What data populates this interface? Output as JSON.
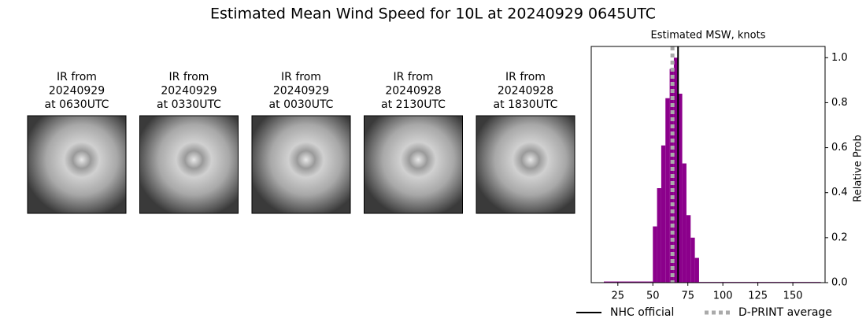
{
  "title": "Estimated Mean Wind Speed for 10L at 20240929 0645UTC",
  "panels": [
    {
      "lines": [
        "IR from",
        "20240929",
        "at 0630UTC"
      ]
    },
    {
      "lines": [
        "IR from",
        "20240929",
        "at 0330UTC"
      ]
    },
    {
      "lines": [
        "IR from",
        "20240929",
        "at 0030UTC"
      ]
    },
    {
      "lines": [
        "IR from",
        "20240928",
        "at 2130UTC"
      ]
    },
    {
      "lines": [
        "IR from",
        "20240928",
        "at 1830UTC"
      ]
    }
  ],
  "chart_data": {
    "type": "histogram",
    "title": "Estimated MSW, knots",
    "y_label": "Relative Prob",
    "bins": [
      15,
      50,
      53,
      56,
      59,
      62,
      65,
      68,
      71,
      74,
      77,
      80,
      83,
      170
    ],
    "values": [
      0.005,
      0.25,
      0.42,
      0.61,
      0.82,
      0.95,
      1.0,
      0.84,
      0.53,
      0.3,
      0.2,
      0.11,
      0.003
    ],
    "color": "#8b008b",
    "xlim": [
      6,
      173
    ],
    "xticks": [
      25,
      50,
      75,
      100,
      125,
      150
    ],
    "ylim": [
      0,
      1.05
    ],
    "yticks": [
      {
        "value": 0,
        "label": "0.0"
      },
      0.2,
      0.4,
      0.6,
      0.8,
      {
        "value": 1,
        "label": "1.0"
      }
    ],
    "reference_lines": [
      {
        "name": "NHC official",
        "value": 68,
        "color": "#000000",
        "style": "solid"
      },
      {
        "name": "D-PRINT average",
        "value": 64,
        "color": "#aaaaaa",
        "style": "dotted"
      }
    ]
  }
}
